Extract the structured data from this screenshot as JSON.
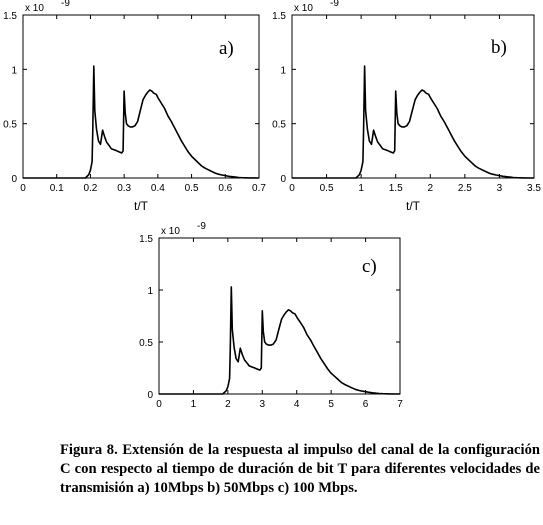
{
  "chart_data": [
    {
      "type": "line",
      "panel_label": "a)",
      "exponent_label": "x 10",
      "exponent_power": "-9",
      "xlabel": "t/T",
      "xlim": [
        0,
        0.7
      ],
      "ylim": [
        0,
        1.5
      ],
      "xticks": [
        "0",
        "0.1",
        "0.2",
        "0.3",
        "0.4",
        "0.5",
        "0.6",
        "0.7"
      ],
      "xtick_values": [
        0,
        0.1,
        0.2,
        0.3,
        0.4,
        0.5,
        0.6,
        0.7
      ],
      "yticks": [
        "0",
        "0.5",
        "1",
        "1.5"
      ],
      "ytick_values": [
        0,
        0.5,
        1,
        1.5
      ],
      "series": [
        {
          "x": [
            0.185,
            0.195,
            0.2,
            0.205,
            0.207,
            0.21,
            0.213,
            0.218,
            0.224,
            0.23,
            0.236,
            0.242,
            0.248,
            0.255,
            0.262,
            0.27,
            0.278,
            0.285,
            0.293,
            0.297,
            0.3,
            0.303,
            0.307,
            0.312,
            0.318,
            0.325,
            0.332,
            0.34,
            0.348,
            0.356,
            0.363,
            0.37,
            0.376,
            0.382,
            0.388,
            0.395,
            0.402,
            0.41,
            0.42,
            0.43,
            0.44,
            0.45,
            0.46,
            0.47,
            0.48,
            0.49,
            0.5,
            0.51,
            0.52,
            0.53,
            0.54,
            0.55,
            0.56,
            0.57,
            0.58,
            0.59,
            0.6,
            0.61,
            0.62,
            0.63,
            0.64,
            0.65,
            0.66,
            0.67
          ],
          "y": [
            0.0,
            0.03,
            0.07,
            0.15,
            0.45,
            1.03,
            0.62,
            0.45,
            0.34,
            0.31,
            0.44,
            0.38,
            0.33,
            0.3,
            0.27,
            0.26,
            0.25,
            0.24,
            0.23,
            0.25,
            0.8,
            0.6,
            0.5,
            0.48,
            0.47,
            0.47,
            0.48,
            0.52,
            0.62,
            0.72,
            0.76,
            0.79,
            0.81,
            0.8,
            0.78,
            0.77,
            0.73,
            0.69,
            0.64,
            0.57,
            0.52,
            0.46,
            0.4,
            0.34,
            0.29,
            0.24,
            0.2,
            0.17,
            0.14,
            0.11,
            0.09,
            0.075,
            0.06,
            0.045,
            0.035,
            0.028,
            0.022,
            0.016,
            0.012,
            0.008,
            0.005,
            0.003,
            0.002,
            0.001
          ]
        }
      ]
    },
    {
      "type": "line",
      "panel_label": "b)",
      "exponent_label": "x 10",
      "exponent_power": "-9",
      "xlabel": "t/T",
      "xlim": [
        0,
        3.5
      ],
      "ylim": [
        0,
        1.5
      ],
      "xticks": [
        "0",
        "0.5",
        "1",
        "1.5",
        "2",
        "2.5",
        "3",
        "3.5"
      ],
      "xtick_values": [
        0,
        0.5,
        1,
        1.5,
        2,
        2.5,
        3,
        3.5
      ],
      "yticks": [
        "0",
        "0.5",
        "1",
        "1.5"
      ],
      "ytick_values": [
        0,
        0.5,
        1,
        1.5
      ],
      "series": [
        {
          "x": [
            0.925,
            0.975,
            1.0,
            1.025,
            1.035,
            1.05,
            1.065,
            1.09,
            1.12,
            1.15,
            1.18,
            1.21,
            1.24,
            1.275,
            1.31,
            1.35,
            1.39,
            1.425,
            1.465,
            1.485,
            1.5,
            1.515,
            1.535,
            1.56,
            1.59,
            1.625,
            1.66,
            1.7,
            1.74,
            1.78,
            1.815,
            1.85,
            1.88,
            1.91,
            1.94,
            1.975,
            2.01,
            2.05,
            2.1,
            2.15,
            2.2,
            2.25,
            2.3,
            2.35,
            2.4,
            2.45,
            2.5,
            2.55,
            2.6,
            2.65,
            2.7,
            2.75,
            2.8,
            2.85,
            2.9,
            2.95,
            3.0,
            3.05,
            3.1,
            3.15,
            3.2,
            3.25,
            3.3,
            3.35
          ],
          "y": [
            0.0,
            0.03,
            0.07,
            0.15,
            0.45,
            1.03,
            0.62,
            0.45,
            0.34,
            0.31,
            0.44,
            0.38,
            0.33,
            0.3,
            0.27,
            0.26,
            0.25,
            0.24,
            0.23,
            0.25,
            0.8,
            0.6,
            0.5,
            0.48,
            0.47,
            0.47,
            0.48,
            0.52,
            0.62,
            0.72,
            0.76,
            0.79,
            0.81,
            0.8,
            0.78,
            0.77,
            0.73,
            0.69,
            0.64,
            0.57,
            0.52,
            0.46,
            0.4,
            0.34,
            0.29,
            0.24,
            0.2,
            0.17,
            0.14,
            0.11,
            0.09,
            0.075,
            0.06,
            0.045,
            0.035,
            0.028,
            0.022,
            0.016,
            0.012,
            0.008,
            0.005,
            0.003,
            0.002,
            0.001
          ]
        }
      ]
    },
    {
      "type": "line",
      "panel_label": "c)",
      "exponent_label": "x 10",
      "exponent_power": "-9",
      "xlabel": "",
      "xlim": [
        0,
        7
      ],
      "ylim": [
        0,
        1.5
      ],
      "xticks": [
        "0",
        "1",
        "2",
        "3",
        "4",
        "5",
        "6",
        "7"
      ],
      "xtick_values": [
        0,
        1,
        2,
        3,
        4,
        5,
        6,
        7
      ],
      "yticks": [
        "0",
        "0.5",
        "1",
        "1.5"
      ],
      "ytick_values": [
        0,
        0.5,
        1,
        1.5
      ],
      "series": [
        {
          "x": [
            1.85,
            1.95,
            2.0,
            2.05,
            2.07,
            2.1,
            2.13,
            2.18,
            2.24,
            2.3,
            2.36,
            2.42,
            2.48,
            2.55,
            2.62,
            2.7,
            2.78,
            2.85,
            2.93,
            2.97,
            3.0,
            3.03,
            3.07,
            3.12,
            3.18,
            3.25,
            3.32,
            3.4,
            3.48,
            3.56,
            3.63,
            3.7,
            3.76,
            3.82,
            3.88,
            3.95,
            4.02,
            4.1,
            4.2,
            4.3,
            4.4,
            4.5,
            4.6,
            4.7,
            4.8,
            4.9,
            5.0,
            5.1,
            5.2,
            5.3,
            5.4,
            5.5,
            5.6,
            5.7,
            5.8,
            5.9,
            6.0,
            6.1,
            6.2,
            6.3,
            6.4,
            6.5,
            6.6,
            6.7
          ],
          "y": [
            0.0,
            0.03,
            0.07,
            0.15,
            0.45,
            1.03,
            0.62,
            0.45,
            0.34,
            0.31,
            0.44,
            0.38,
            0.33,
            0.3,
            0.27,
            0.26,
            0.25,
            0.24,
            0.23,
            0.25,
            0.8,
            0.6,
            0.5,
            0.48,
            0.47,
            0.47,
            0.48,
            0.52,
            0.62,
            0.72,
            0.76,
            0.79,
            0.81,
            0.8,
            0.78,
            0.77,
            0.73,
            0.69,
            0.64,
            0.57,
            0.52,
            0.46,
            0.4,
            0.34,
            0.29,
            0.24,
            0.2,
            0.17,
            0.14,
            0.11,
            0.09,
            0.075,
            0.06,
            0.045,
            0.035,
            0.028,
            0.022,
            0.016,
            0.012,
            0.008,
            0.005,
            0.003,
            0.002,
            0.001
          ]
        }
      ]
    }
  ],
  "caption": "Figura 8. Extensión de la respuesta al impulso del canal de la configuración C  con respecto al tiempo de duración de bit T para diferentes velocidades de transmisión  a) 10Mbps  b) 50Mbps  c) 100 Mbps.",
  "colors": {
    "line": "#000000",
    "axes": "#000000",
    "background": "#ffffff"
  }
}
